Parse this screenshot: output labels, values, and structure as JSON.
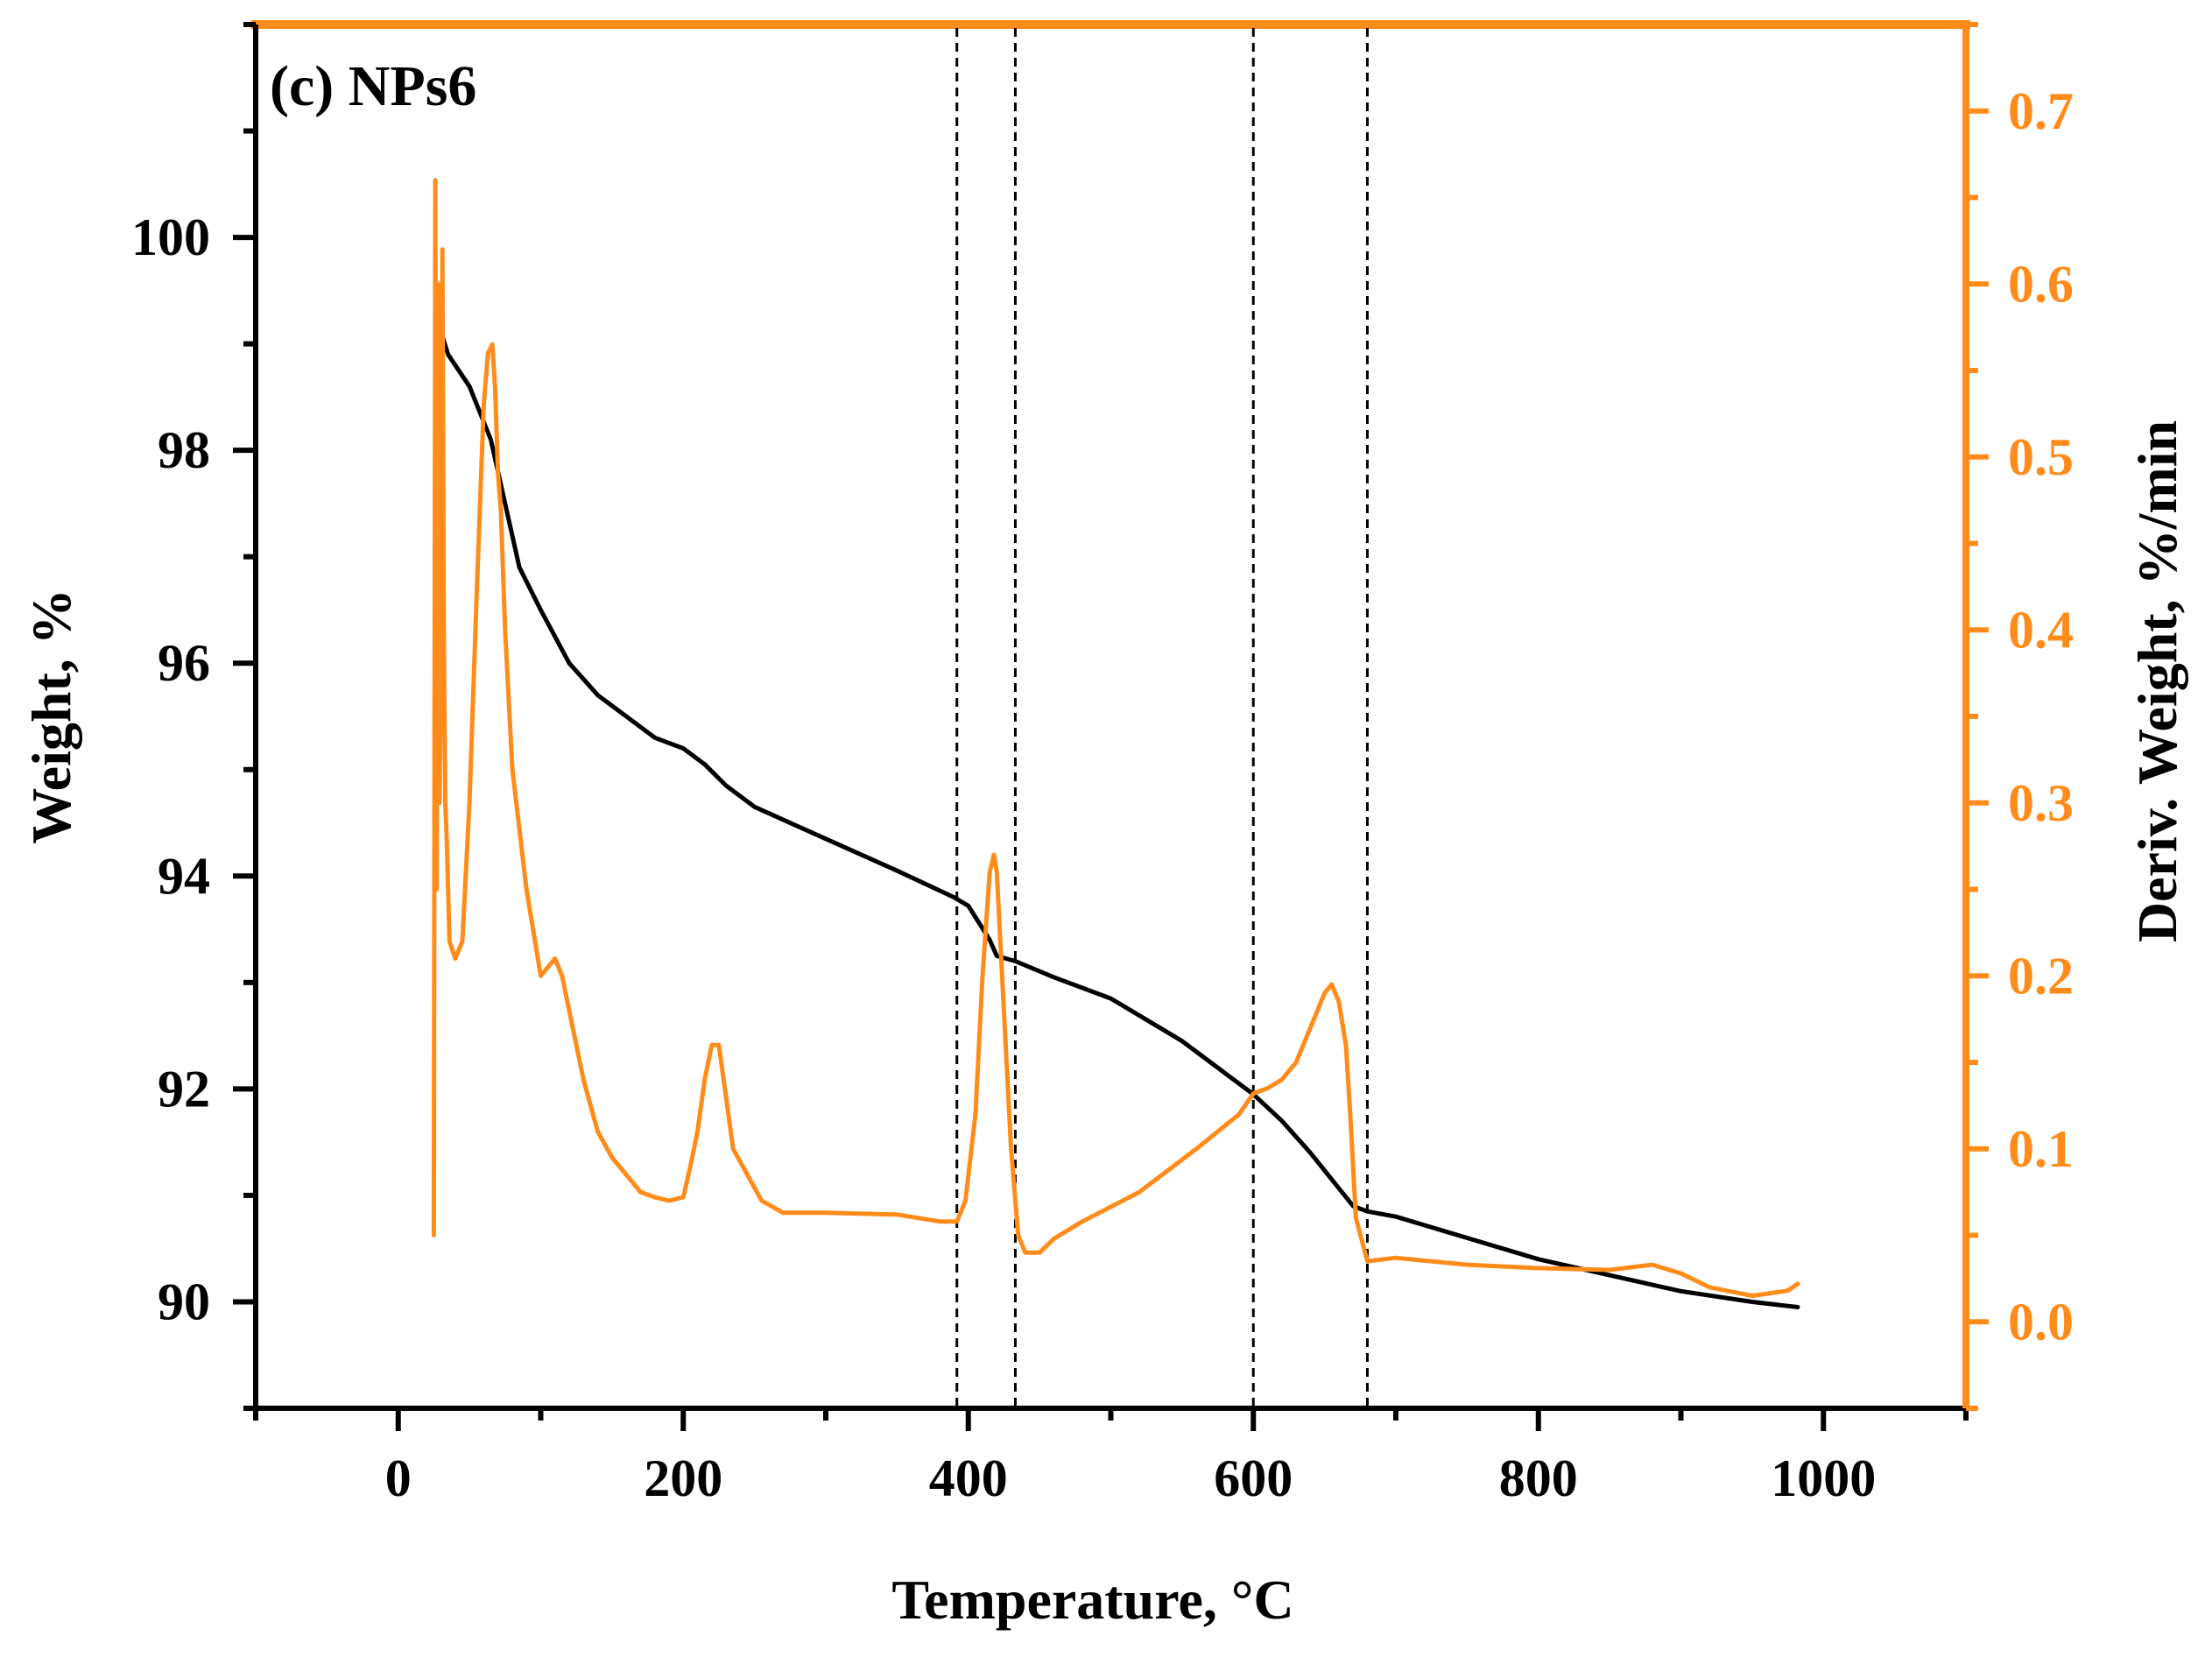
{
  "chart_data": {
    "type": "line",
    "panel_label": "(c) NPs6",
    "xlabel": "Temperature, °C",
    "ylabel": "Weight, %",
    "y2label": "Deriv. Weight, %/min",
    "xlim": [
      -100,
      1100
    ],
    "ylim": [
      89,
      102
    ],
    "y2lim": [
      -0.05,
      0.75
    ],
    "x_ticks": [
      0,
      200,
      400,
      600,
      800,
      1000
    ],
    "x_tick_labels": [
      "0",
      "200",
      "400",
      "600",
      "800",
      "1000"
    ],
    "y_ticks": [
      90,
      92,
      94,
      96,
      98,
      100
    ],
    "y_tick_labels": [
      "90",
      "92",
      "94",
      "96",
      "98",
      "100"
    ],
    "y2_ticks": [
      0.0,
      0.1,
      0.2,
      0.3,
      0.4,
      0.5,
      0.6,
      0.7
    ],
    "y2_tick_labels": [
      "0.0",
      "0.1",
      "0.2",
      "0.3",
      "0.4",
      "0.5",
      "0.6",
      "0.7"
    ],
    "grid": false,
    "reference_lines_x": [
      392,
      433,
      600,
      680
    ],
    "colors": {
      "weight": "#000000",
      "deriv": "#ff8c1a",
      "right_axis": "#ff8c1a",
      "left_axis": "#000000"
    },
    "series": [
      {
        "name": "Weight",
        "axis": "left",
        "x": [
          28,
          35,
          50,
          65,
          75,
          85,
          100,
          120,
          140,
          160,
          180,
          200,
          215,
          230,
          250,
          300,
          350,
          390,
          400,
          408,
          415,
          420,
          433,
          460,
          500,
          550,
          580,
          600,
          620,
          640,
          655,
          670,
          680,
          700,
          750,
          800,
          850,
          900,
          950,
          982
        ],
        "y": [
          99.2,
          98.9,
          98.6,
          98.1,
          97.5,
          96.9,
          96.5,
          96.0,
          95.7,
          95.5,
          95.3,
          95.2,
          95.05,
          94.85,
          94.65,
          94.35,
          94.05,
          93.8,
          93.72,
          93.55,
          93.4,
          93.25,
          93.2,
          93.05,
          92.85,
          92.45,
          92.15,
          91.95,
          91.7,
          91.4,
          91.15,
          90.9,
          90.85,
          90.8,
          90.6,
          90.4,
          90.25,
          90.1,
          90.0,
          89.95
        ]
      },
      {
        "name": "Deriv. Weight",
        "axis": "right",
        "x": [
          25,
          26,
          27,
          28,
          29,
          30,
          31,
          32,
          33,
          34,
          36,
          40,
          45,
          50,
          55,
          60,
          63,
          66,
          68,
          70,
          72,
          75,
          80,
          90,
          100,
          110,
          115,
          120,
          130,
          140,
          150,
          160,
          170,
          180,
          190,
          200,
          205,
          210,
          215,
          220,
          225,
          230,
          235,
          245,
          255,
          270,
          300,
          350,
          380,
          392,
          398,
          405,
          410,
          415,
          418,
          420,
          425,
          430,
          435,
          440,
          450,
          460,
          480,
          520,
          560,
          590,
          600,
          610,
          620,
          630,
          640,
          650,
          655,
          660,
          665,
          668,
          672,
          680,
          700,
          750,
          800,
          850,
          870,
          880,
          900,
          920,
          950,
          975,
          982
        ],
        "y": [
          0.05,
          0.66,
          0.25,
          0.6,
          0.3,
          0.38,
          0.62,
          0.4,
          0.3,
          0.28,
          0.22,
          0.21,
          0.22,
          0.3,
          0.42,
          0.53,
          0.56,
          0.565,
          0.54,
          0.49,
          0.47,
          0.4,
          0.32,
          0.25,
          0.2,
          0.21,
          0.2,
          0.18,
          0.14,
          0.11,
          0.095,
          0.085,
          0.075,
          0.072,
          0.07,
          0.072,
          0.09,
          0.11,
          0.14,
          0.16,
          0.16,
          0.13,
          0.1,
          0.085,
          0.07,
          0.063,
          0.063,
          0.062,
          0.058,
          0.058,
          0.07,
          0.12,
          0.2,
          0.26,
          0.27,
          0.26,
          0.18,
          0.1,
          0.05,
          0.04,
          0.04,
          0.048,
          0.058,
          0.075,
          0.1,
          0.12,
          0.132,
          0.135,
          0.14,
          0.15,
          0.17,
          0.19,
          0.195,
          0.185,
          0.16,
          0.12,
          0.06,
          0.035,
          0.037,
          0.033,
          0.031,
          0.03,
          0.032,
          0.033,
          0.028,
          0.02,
          0.015,
          0.018,
          0.022
        ]
      }
    ]
  }
}
